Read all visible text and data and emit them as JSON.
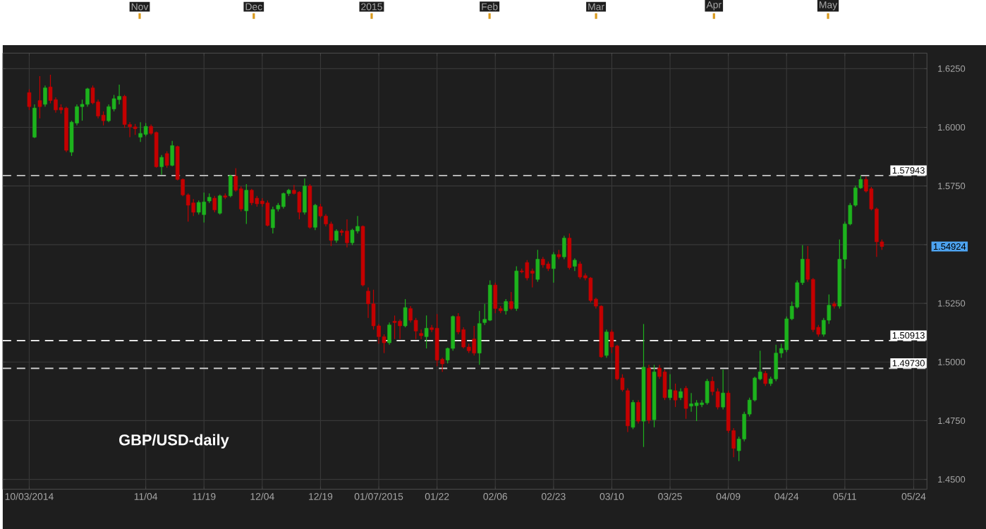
{
  "chart_data": {
    "type": "candlestick",
    "title": "GBP/USD-daily",
    "categories": [
      "10/03/2014",
      null,
      null,
      null,
      null,
      null,
      null,
      null,
      null,
      null,
      null,
      null,
      null,
      null,
      null,
      null,
      null,
      null,
      null,
      null,
      null,
      null,
      "11/04",
      null,
      null,
      null,
      null,
      null,
      null,
      null,
      null,
      null,
      null,
      "11/19",
      null,
      null,
      null,
      null,
      null,
      null,
      null,
      null,
      null,
      null,
      "12/04",
      null,
      null,
      null,
      null,
      null,
      null,
      null,
      null,
      null,
      null,
      "12/19",
      null,
      null,
      null,
      null,
      null,
      null,
      null,
      null,
      null,
      null,
      "01/07/2015",
      null,
      null,
      null,
      null,
      null,
      null,
      null,
      null,
      null,
      null,
      "01/22",
      null,
      null,
      null,
      null,
      null,
      null,
      null,
      null,
      null,
      null,
      "02/06",
      null,
      null,
      null,
      null,
      null,
      null,
      null,
      null,
      null,
      null,
      "02/23",
      null,
      null,
      null,
      null,
      null,
      null,
      null,
      null,
      null,
      null,
      "03/10",
      null,
      null,
      null,
      null,
      null,
      null,
      null,
      null,
      null,
      null,
      "03/25",
      null,
      null,
      null,
      null,
      null,
      null,
      null,
      null,
      null,
      null,
      "04/09",
      null,
      null,
      null,
      null,
      null,
      null,
      null,
      null,
      null,
      null,
      "04/24",
      null,
      null,
      null,
      null,
      null,
      null,
      null,
      null,
      null,
      null,
      "05/11",
      null,
      null,
      null,
      null,
      null,
      null,
      null,
      null,
      null,
      null,
      null,
      null,
      "05/24",
      null,
      null
    ],
    "ohlc": [
      [
        1.6148,
        1.6162,
        1.6074,
        1.6088
      ],
      [
        1.5958,
        1.6098,
        1.5954,
        1.6082
      ],
      [
        1.6114,
        1.6218,
        1.6038,
        1.6088
      ],
      [
        1.6098,
        1.6178,
        1.6088,
        1.6168
      ],
      [
        1.6172,
        1.6224,
        1.6102,
        1.6114
      ],
      [
        1.6118,
        1.6128,
        1.6062,
        1.6074
      ],
      [
        1.6084,
        1.6098,
        1.6058,
        1.6074
      ],
      [
        1.6082,
        1.6088,
        1.5894,
        1.5902
      ],
      [
        1.5894,
        1.6028,
        1.5878,
        1.6022
      ],
      [
        1.6018,
        1.6098,
        1.6008,
        1.6088
      ],
      [
        1.6088,
        1.6118,
        1.6028,
        1.6098
      ],
      [
        1.6098,
        1.6168,
        1.6088,
        1.6164
      ],
      [
        1.6168,
        1.6178,
        1.6098,
        1.6104
      ],
      [
        1.6108,
        1.6118,
        1.6038,
        1.6048
      ],
      [
        1.6052,
        1.6068,
        1.6008,
        1.6028
      ],
      [
        1.6028,
        1.6098,
        1.6022,
        1.6088
      ],
      [
        1.6078,
        1.6138,
        1.6068,
        1.6122
      ],
      [
        1.6118,
        1.6182,
        1.6098,
        1.6132
      ],
      [
        1.6132,
        1.6138,
        1.5998,
        1.6012
      ],
      [
        1.6012,
        1.6022,
        1.5958,
        1.6002
      ],
      [
        1.6002,
        1.6014,
        1.5968,
        1.5994
      ],
      [
        1.5958,
        1.6022,
        1.5938,
        1.5974
      ],
      [
        1.597,
        1.6018,
        1.5962,
        1.6004
      ],
      [
        1.6004,
        1.6012,
        1.5968,
        1.5974
      ],
      [
        1.5978,
        1.5982,
        1.5828,
        1.5832
      ],
      [
        1.5832,
        1.5882,
        1.5798,
        1.5872
      ],
      [
        1.5888,
        1.5898,
        1.5828,
        1.5838
      ],
      [
        1.5838,
        1.5942,
        1.5834,
        1.5922
      ],
      [
        1.5918,
        1.5922,
        1.5774,
        1.5778
      ],
      [
        1.5778,
        1.5782,
        1.5706,
        1.5712
      ],
      [
        1.5712,
        1.5718,
        1.5598,
        1.5668
      ],
      [
        1.5678,
        1.5694,
        1.5622,
        1.5638
      ],
      [
        1.5638,
        1.5688,
        1.5628,
        1.568
      ],
      [
        1.5628,
        1.5722,
        1.5594,
        1.5682
      ],
      [
        1.5686,
        1.5718,
        1.5678,
        1.5702
      ],
      [
        1.5698,
        1.5708,
        1.5638,
        1.5648
      ],
      [
        1.5634,
        1.5714,
        1.5628,
        1.5708
      ],
      [
        1.5708,
        1.5718,
        1.5694,
        1.5702
      ],
      [
        1.5708,
        1.5798,
        1.5702,
        1.5794
      ],
      [
        1.5792,
        1.5826,
        1.5726,
        1.5732
      ],
      [
        1.5738,
        1.5748,
        1.5642,
        1.5652
      ],
      [
        1.5644,
        1.5758,
        1.5588,
        1.5732
      ],
      [
        1.5732,
        1.5738,
        1.5668,
        1.5678
      ],
      [
        1.5698,
        1.5708,
        1.5662,
        1.5674
      ],
      [
        1.5686,
        1.5698,
        1.5662,
        1.5674
      ],
      [
        1.5678,
        1.5688,
        1.5578,
        1.5582
      ],
      [
        1.5572,
        1.5662,
        1.5548,
        1.565
      ],
      [
        1.5652,
        1.5678,
        1.5642,
        1.5668
      ],
      [
        1.5662,
        1.5722,
        1.5654,
        1.5718
      ],
      [
        1.5718,
        1.5738,
        1.5708,
        1.5732
      ],
      [
        1.5732,
        1.5754,
        1.5714,
        1.5718
      ],
      [
        1.5724,
        1.5728,
        1.5608,
        1.5638
      ],
      [
        1.5638,
        1.5782,
        1.5628,
        1.575
      ],
      [
        1.575,
        1.5758,
        1.5568,
        1.5574
      ],
      [
        1.5574,
        1.5674,
        1.5562,
        1.5668
      ],
      [
        1.5662,
        1.5674,
        1.5614,
        1.5622
      ],
      [
        1.5622,
        1.563,
        1.5578,
        1.5588
      ],
      [
        1.5588,
        1.5598,
        1.5494,
        1.5518
      ],
      [
        1.5518,
        1.5566,
        1.5508,
        1.5558
      ],
      [
        1.5558,
        1.5566,
        1.5538,
        1.5552
      ],
      [
        1.5558,
        1.5608,
        1.5488,
        1.5508
      ],
      [
        1.5508,
        1.5568,
        1.5498,
        1.5562
      ],
      [
        1.5558,
        1.5622,
        1.5548,
        1.5578
      ],
      [
        1.5578,
        1.5582,
        1.5322,
        1.5328
      ],
      [
        1.5302,
        1.5318,
        1.5188,
        1.5248
      ],
      [
        1.5248,
        1.5308,
        1.5138,
        1.5154
      ],
      [
        1.5154,
        1.5162,
        1.5078,
        1.5108
      ],
      [
        1.5108,
        1.5118,
        1.5038,
        1.5082
      ],
      [
        1.5082,
        1.5168,
        1.5074,
        1.5158
      ],
      [
        1.5174,
        1.5198,
        1.5098,
        1.5168
      ],
      [
        1.5174,
        1.5182,
        1.5098,
        1.5154
      ],
      [
        1.5154,
        1.5268,
        1.5148,
        1.5232
      ],
      [
        1.5228,
        1.5238,
        1.5168,
        1.5178
      ],
      [
        1.5178,
        1.5188,
        1.5098,
        1.5132
      ],
      [
        1.5122,
        1.5138,
        1.5098,
        1.5112
      ],
      [
        1.5108,
        1.5198,
        1.5058,
        1.5144
      ],
      [
        1.5146,
        1.5158,
        1.5128,
        1.5138
      ],
      [
        1.5144,
        1.5204,
        1.4982,
        1.5008
      ],
      [
        1.5012,
        1.5018,
        1.4958,
        1.4992
      ],
      [
        1.5008,
        1.5062,
        1.4994,
        1.5058
      ],
      [
        1.5058,
        1.5198,
        1.5048,
        1.5194
      ],
      [
        1.5194,
        1.5208,
        1.5118,
        1.5128
      ],
      [
        1.5138,
        1.5148,
        1.5058,
        1.5064
      ],
      [
        1.5064,
        1.5078,
        1.5038,
        1.5048
      ],
      [
        1.5098,
        1.5154,
        1.5028,
        1.5038
      ],
      [
        1.5038,
        1.5218,
        1.4988,
        1.5164
      ],
      [
        1.5168,
        1.5248,
        1.5158,
        1.5182
      ],
      [
        1.5178,
        1.5348,
        1.5174,
        1.5328
      ],
      [
        1.5328,
        1.5338,
        1.5208,
        1.5228
      ],
      [
        1.5228,
        1.5238,
        1.5208,
        1.5218
      ],
      [
        1.5218,
        1.5268,
        1.5202,
        1.5258
      ],
      [
        1.5258,
        1.5298,
        1.5222,
        1.5228
      ],
      [
        1.5228,
        1.5408,
        1.5218,
        1.5388
      ],
      [
        1.5388,
        1.5398,
        1.5378,
        1.5384
      ],
      [
        1.5424,
        1.5434,
        1.5348,
        1.5358
      ],
      [
        1.5388,
        1.5398,
        1.5318,
        1.5378
      ],
      [
        1.5352,
        1.5478,
        1.5342,
        1.5438
      ],
      [
        1.5438,
        1.5448,
        1.5402,
        1.5414
      ],
      [
        1.5418,
        1.5428,
        1.5388,
        1.5398
      ],
      [
        1.5398,
        1.5468,
        1.5338,
        1.5458
      ],
      [
        1.5458,
        1.5478,
        1.5438,
        1.5448
      ],
      [
        1.5448,
        1.5538,
        1.5438,
        1.5528
      ],
      [
        1.5528,
        1.5548,
        1.5394,
        1.5402
      ],
      [
        1.5408,
        1.5442,
        1.5388,
        1.5434
      ],
      [
        1.5418,
        1.5428,
        1.5354,
        1.5362
      ],
      [
        1.5368,
        1.5378,
        1.5348,
        1.5358
      ],
      [
        1.5358,
        1.5362,
        1.5254,
        1.5262
      ],
      [
        1.5268,
        1.5274,
        1.5228,
        1.5238
      ],
      [
        1.5238,
        1.5242,
        1.5018,
        1.5022
      ],
      [
        1.5028,
        1.5138,
        1.5018,
        1.5128
      ],
      [
        1.5128,
        1.5138,
        1.5038,
        1.5064
      ],
      [
        1.5068,
        1.5074,
        1.4922,
        1.4928
      ],
      [
        1.4932,
        1.4948,
        1.4874,
        1.4882
      ],
      [
        1.4878,
        1.4888,
        1.4702,
        1.4728
      ],
      [
        1.4722,
        1.4838,
        1.4714,
        1.4828
      ],
      [
        1.4828,
        1.4838,
        1.4738,
        1.4748
      ],
      [
        1.4748,
        1.5162,
        1.4638,
        1.4978
      ],
      [
        1.4974,
        1.4988,
        1.4738,
        1.4752
      ],
      [
        1.4754,
        1.4988,
        1.4722,
        1.4958
      ],
      [
        1.4974,
        1.4988,
        1.4928,
        1.4938
      ],
      [
        1.4958,
        1.4968,
        1.4838,
        1.4848
      ],
      [
        1.4848,
        1.4948,
        1.4838,
        1.4882
      ],
      [
        1.4878,
        1.4908,
        1.4808,
        1.4838
      ],
      [
        1.4848,
        1.4888,
        1.4838,
        1.4874
      ],
      [
        1.4888,
        1.4898,
        1.4758,
        1.4802
      ],
      [
        1.4812,
        1.4868,
        1.4788,
        1.4822
      ],
      [
        1.4814,
        1.4838,
        1.4748,
        1.4826
      ],
      [
        1.4818,
        1.4838,
        1.4808,
        1.4826
      ],
      [
        1.4826,
        1.4928,
        1.4818,
        1.4918
      ],
      [
        1.4918,
        1.4938,
        1.4858,
        1.4874
      ],
      [
        1.4874,
        1.4888,
        1.4798,
        1.4808
      ],
      [
        1.4808,
        1.4968,
        1.4798,
        1.4868
      ],
      [
        1.4868,
        1.4878,
        1.4698,
        1.4708
      ],
      [
        1.4708,
        1.4718,
        1.4594,
        1.4632
      ],
      [
        1.4622,
        1.4682,
        1.4578,
        1.4672
      ],
      [
        1.4672,
        1.4788,
        1.4662,
        1.4778
      ],
      [
        1.4778,
        1.4848,
        1.4768,
        1.4838
      ],
      [
        1.4838,
        1.4938,
        1.4832,
        1.4932
      ],
      [
        1.4928,
        1.5048,
        1.4922,
        1.4958
      ],
      [
        1.4952,
        1.4962,
        1.4898,
        1.4908
      ],
      [
        1.4908,
        1.4938,
        1.4898,
        1.4928
      ],
      [
        1.4928,
        1.5074,
        1.4918,
        1.5038
      ],
      [
        1.5038,
        1.5078,
        1.5018,
        1.5058
      ],
      [
        1.5052,
        1.5194,
        1.5042,
        1.5184
      ],
      [
        1.5184,
        1.5258,
        1.5178,
        1.5238
      ],
      [
        1.5234,
        1.5348,
        1.5228,
        1.5338
      ],
      [
        1.5338,
        1.5498,
        1.5328,
        1.5438
      ],
      [
        1.5438,
        1.5494,
        1.5342,
        1.5352
      ],
      [
        1.5352,
        1.5358,
        1.5128,
        1.5138
      ],
      [
        1.5148,
        1.5158,
        1.5108,
        1.5118
      ],
      [
        1.5118,
        1.5188,
        1.5108,
        1.5178
      ],
      [
        1.5178,
        1.5288,
        1.5162,
        1.5242
      ],
      [
        1.5248,
        1.5258,
        1.5228,
        1.5238
      ],
      [
        1.5238,
        1.5522,
        1.5228,
        1.5438
      ],
      [
        1.5438,
        1.5598,
        1.5398,
        1.5588
      ],
      [
        1.5588,
        1.5678,
        1.5582,
        1.5668
      ],
      [
        1.5668,
        1.5752,
        1.5662,
        1.5742
      ],
      [
        1.5742,
        1.5794,
        1.5738,
        1.5778
      ],
      [
        1.5778,
        1.579,
        1.5722,
        1.5728
      ],
      [
        1.5738,
        1.5746,
        1.5646,
        1.5652
      ],
      [
        1.5652,
        1.5658,
        1.5448,
        1.5512
      ],
      [
        1.5512,
        1.5522,
        1.5478,
        1.5492
      ],
      null,
      null,
      null,
      null,
      null,
      null,
      null,
      null
    ],
    "colors": [
      "#c40000",
      "#1db31d",
      "#c40000",
      "#1db31d",
      "#c40000",
      "#c40000",
      "#c40000",
      "#c40000",
      "#1db31d",
      "#1db31d",
      "#1db31d",
      "#1db31d",
      "#c40000",
      "#c40000",
      "#c40000",
      "#1db31d",
      "#1db31d",
      "#1db31d",
      "#c40000",
      "#c40000",
      "#c40000",
      "#1db31d",
      "#1db31d",
      "#c40000",
      "#c40000",
      "#1db31d",
      "#c40000",
      "#1db31d",
      "#c40000",
      "#c40000",
      "#c40000",
      "#c40000",
      "#1db31d",
      "#1db31d",
      "#1db31d",
      "#c40000",
      "#1db31d",
      "#c40000",
      "#1db31d",
      "#c40000",
      "#c40000",
      "#1db31d",
      "#c40000",
      "#c40000",
      "#c40000",
      "#c40000",
      "#1db31d",
      "#1db31d",
      "#1db31d",
      "#1db31d",
      "#c40000",
      "#c40000",
      "#1db31d",
      "#c40000",
      "#1db31d",
      "#c40000",
      "#c40000",
      "#c40000",
      "#1db31d",
      "#c40000",
      "#c40000",
      "#1db31d",
      "#1db31d",
      "#c40000",
      "#c40000",
      "#c40000",
      "#c40000",
      "#c40000",
      "#1db31d",
      "#c40000",
      "#c40000",
      "#1db31d",
      "#c40000",
      "#c40000",
      "#c40000",
      "#1db31d",
      "#c40000",
      "#c40000",
      "#c40000",
      "#1db31d",
      "#1db31d",
      "#c40000",
      "#c40000",
      "#c40000",
      "#c40000",
      "#1db31d",
      "#1db31d",
      "#1db31d",
      "#c40000",
      "#c40000",
      "#1db31d",
      "#c40000",
      "#1db31d",
      "#c40000",
      "#c40000",
      "#c40000",
      "#1db31d",
      "#c40000",
      "#c40000",
      "#1db31d",
      "#c40000",
      "#1db31d",
      "#c40000",
      "#1db31d",
      "#c40000",
      "#c40000",
      "#c40000",
      "#c40000",
      "#c40000",
      "#1db31d",
      "#c40000",
      "#c40000",
      "#c40000",
      "#c40000",
      "#1db31d",
      "#c40000",
      "#1db31d",
      "#c40000",
      "#1db31d",
      "#c40000",
      "#c40000",
      "#1db31d",
      "#c40000",
      "#1db31d",
      "#c40000",
      "#1db31d",
      "#1db31d",
      "#1db31d",
      "#1db31d",
      "#c40000",
      "#c40000",
      "#1db31d",
      "#c40000",
      "#c40000",
      "#1db31d",
      "#1db31d",
      "#1db31d",
      "#1db31d",
      "#1db31d",
      "#c40000",
      "#1db31d",
      "#1db31d",
      "#1db31d",
      "#1db31d",
      "#1db31d",
      "#1db31d",
      "#1db31d",
      "#c40000",
      "#c40000",
      "#c40000",
      "#1db31d",
      "#1db31d",
      "#c40000",
      "#1db31d",
      "#1db31d",
      "#1db31d",
      "#1db31d",
      "#1db31d",
      "#c40000",
      "#c40000",
      "#c40000",
      "#c40000",
      null,
      null,
      null,
      null,
      null,
      null,
      null,
      null
    ],
    "ylim": [
      1.4458,
      1.6316
    ],
    "yticks": [
      {
        "value": 1.45,
        "label": "1.4500"
      },
      {
        "value": 1.475,
        "label": "1.4750"
      },
      {
        "value": 1.5,
        "label": "1.5000"
      },
      {
        "value": 1.525,
        "label": "1.5250"
      },
      {
        "value": 1.55,
        "label": null
      },
      {
        "value": 1.575,
        "label": "1.5750"
      },
      {
        "value": 1.6,
        "label": "1.6000"
      },
      {
        "value": 1.625,
        "label": "1.6250"
      }
    ],
    "x2lim": [
      "2014-09-26",
      "2015-05-27"
    ],
    "x2ticks": [
      {
        "value": "2014-11-01",
        "label": "Nov"
      },
      {
        "value": "2014-12-01",
        "label": "Dec"
      },
      {
        "value": "2015-01-01",
        "label": "2015"
      },
      {
        "value": "2015-02-01",
        "label": "Feb"
      },
      {
        "value": "2015-03-01",
        "label": "Mar"
      },
      {
        "value": "2015-04-01",
        "label": "Apr"
      },
      {
        "value": "2015-05-01",
        "label": "May"
      }
    ],
    "ref_lines": [
      {
        "axis": "y",
        "value": 1.57943,
        "label": "1.57943",
        "color": "#c8c8c8",
        "line_style": "dashed"
      },
      {
        "axis": "y",
        "value": 1.50913,
        "label": "1.50913",
        "color": "#ffffff",
        "line_style": "dashed"
      },
      {
        "axis": "y",
        "value": 1.4973,
        "label": "1.49730",
        "color": "#c8c8c8",
        "line_style": "dashed"
      }
    ],
    "annotations": [
      "1.54924"
    ],
    "grid": true
  }
}
